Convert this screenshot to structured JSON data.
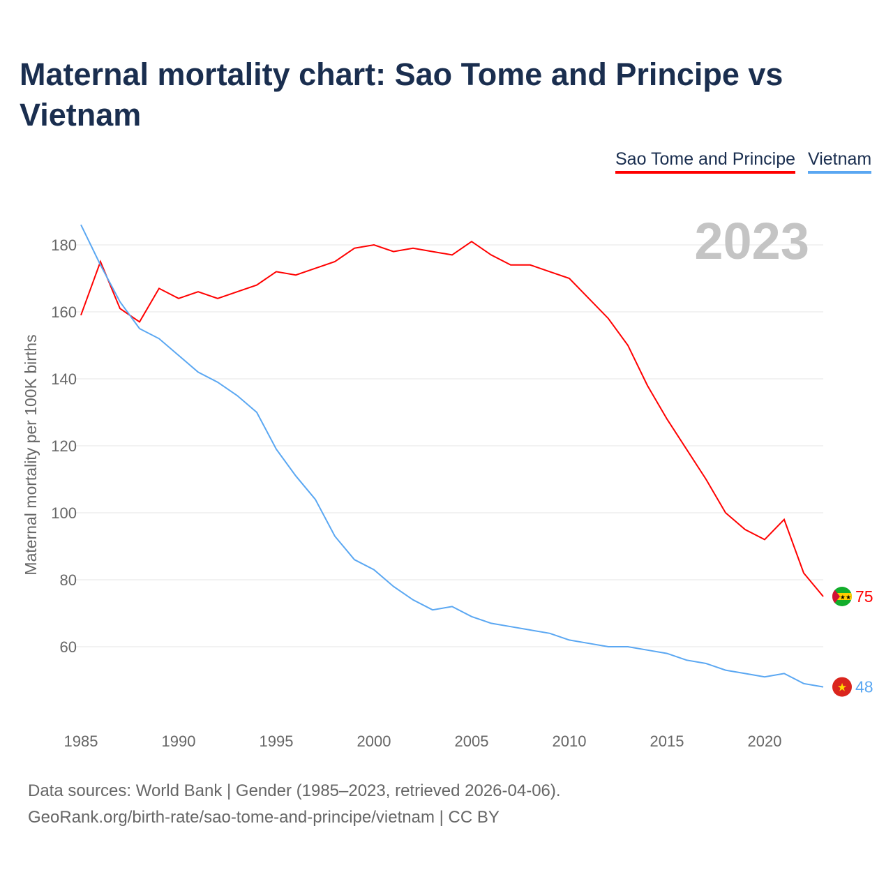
{
  "title": "Maternal mortality chart: Sao Tome and Principe vs Vietnam",
  "year_label": "2023",
  "footer": {
    "line1": "Data sources: World Bank | Gender (1985–2023, retrieved 2026-04-06).",
    "line2": "GeoRank.org/birth-rate/sao-tome-and-principe/vietnam | CC BY"
  },
  "chart_data": {
    "type": "line",
    "title": "Maternal mortality chart: Sao Tome and Principe vs Vietnam",
    "xlabel": "",
    "ylabel": "Maternal mortality per 100K births",
    "xlim": [
      1985,
      2023
    ],
    "ylim": [
      40,
      190
    ],
    "xticks": [
      "1985",
      "1990",
      "1995",
      "2000",
      "2005",
      "2010",
      "2015",
      "2020"
    ],
    "yticks": [
      "60",
      "80",
      "100",
      "120",
      "140",
      "160",
      "180"
    ],
    "grid": true,
    "legend": "top-right",
    "x": [
      1985,
      1986,
      1987,
      1988,
      1989,
      1990,
      1991,
      1992,
      1993,
      1994,
      1995,
      1996,
      1997,
      1998,
      1999,
      2000,
      2001,
      2002,
      2003,
      2004,
      2005,
      2006,
      2007,
      2008,
      2009,
      2010,
      2011,
      2012,
      2013,
      2014,
      2015,
      2016,
      2017,
      2018,
      2019,
      2020,
      2021,
      2022,
      2023
    ],
    "series": [
      {
        "name": "Sao Tome and Principe",
        "color": "#ff0000",
        "end_label": "75",
        "values": [
          159,
          175,
          161,
          157,
          167,
          164,
          166,
          164,
          166,
          168,
          172,
          171,
          173,
          175,
          179,
          180,
          178,
          179,
          178,
          177,
          181,
          177,
          174,
          174,
          172,
          170,
          164,
          158,
          150,
          138,
          128,
          119,
          110,
          100,
          95,
          92,
          98,
          82,
          75
        ]
      },
      {
        "name": "Vietnam",
        "color": "#5aa7f2",
        "end_label": "48",
        "values": [
          186,
          174,
          163,
          155,
          152,
          147,
          142,
          139,
          135,
          130,
          119,
          111,
          104,
          93,
          86,
          83,
          78,
          74,
          71,
          72,
          69,
          67,
          66,
          65,
          64,
          62,
          61,
          60,
          60,
          59,
          58,
          56,
          55,
          53,
          52,
          51,
          52,
          49,
          48
        ]
      }
    ]
  }
}
